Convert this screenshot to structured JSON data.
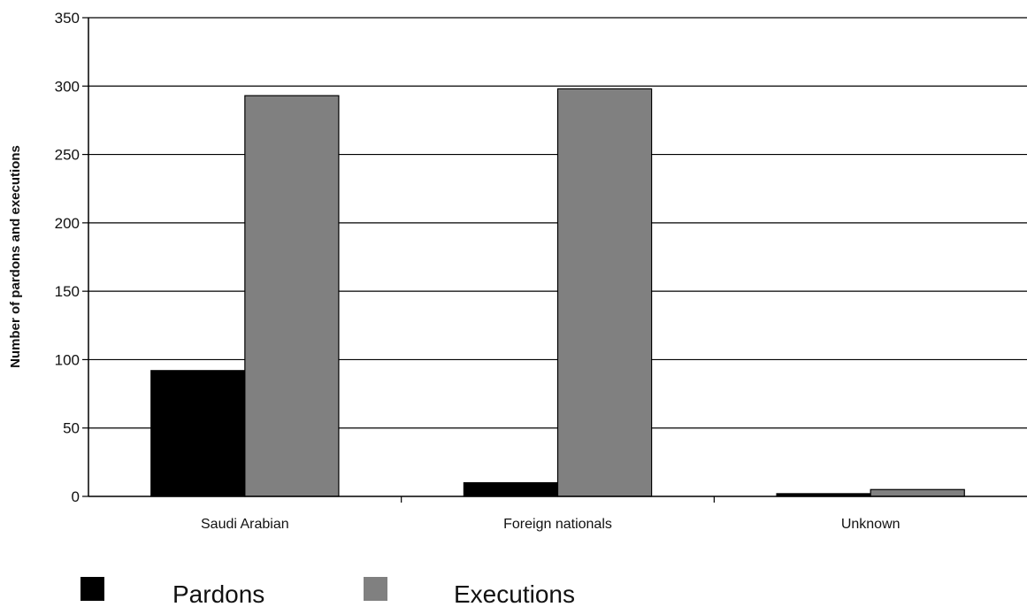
{
  "chart_data": {
    "type": "bar",
    "categories": [
      "Saudi Arabian",
      "Foreign nationals",
      "Unknown"
    ],
    "series": [
      {
        "name": "Pardons",
        "values": [
          92,
          10,
          2
        ],
        "color": "#000000"
      },
      {
        "name": "Executions",
        "values": [
          293,
          298,
          5
        ],
        "color": "#808080"
      }
    ],
    "ylabel": "Number of pardons and executions",
    "ylim": [
      0,
      350
    ],
    "yticks": [
      0,
      50,
      100,
      150,
      200,
      250,
      300,
      350
    ],
    "grid": true,
    "legend_position": "bottom"
  }
}
